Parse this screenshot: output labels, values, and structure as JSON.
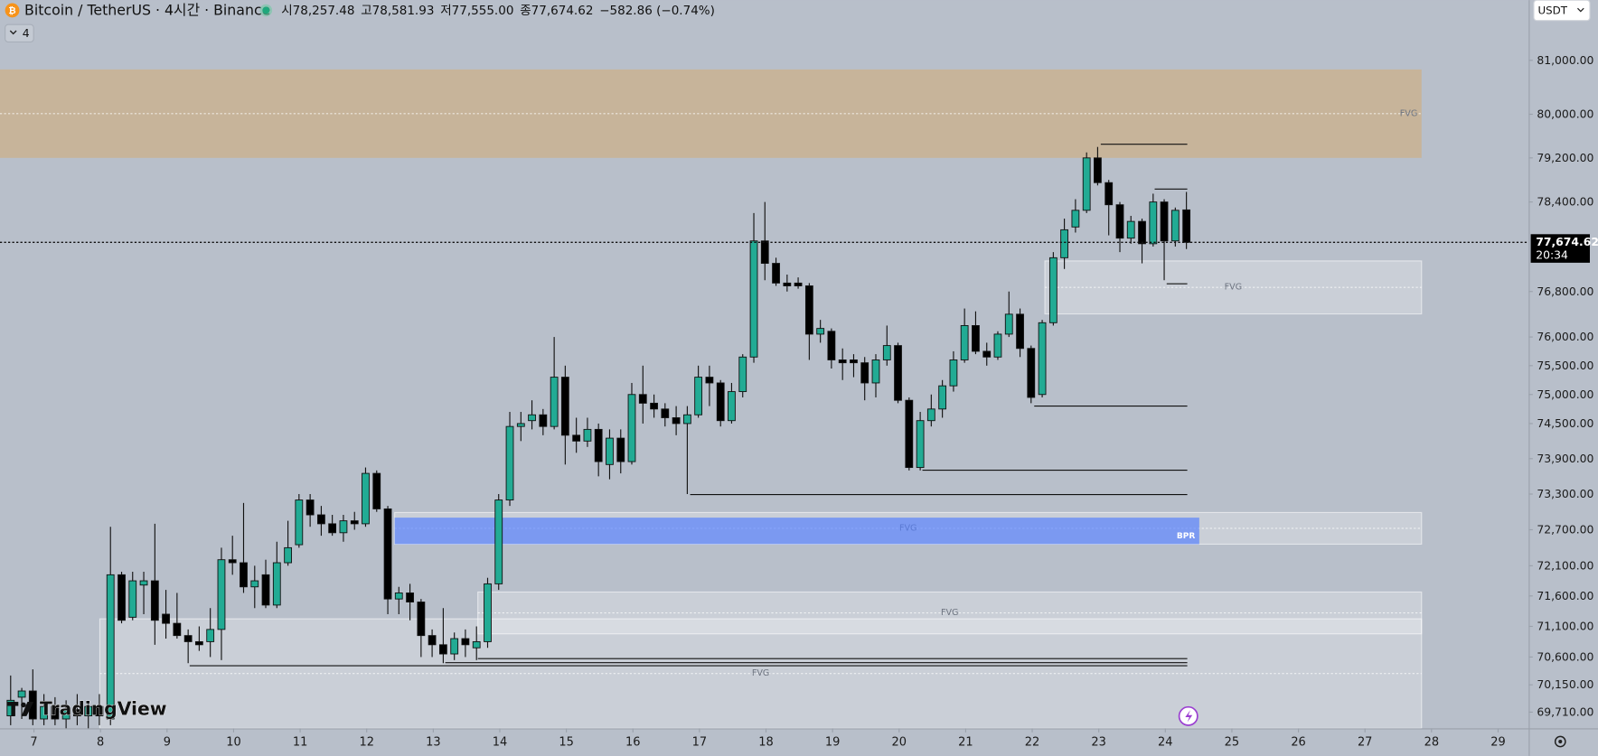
{
  "header": {
    "symbol": "Bitcoin / TetherUS · 4시간 · Binance",
    "ohlc": [
      {
        "key": "시",
        "value": "78,257.48"
      },
      {
        "key": "고",
        "value": "78,581.93"
      },
      {
        "key": "저",
        "value": "77,555.00"
      },
      {
        "key": "종",
        "value": "77,674.62"
      }
    ],
    "change": "−582.86 (−0.74%)"
  },
  "toolbar": {
    "indicators": "4",
    "currency": "USDT"
  },
  "logo": "TradingView",
  "chart_data": {
    "type": "candlestick",
    "log_y": true,
    "grid": false,
    "up_color": "#22ab94",
    "down_color": "#000000",
    "xlim": [
      6.49,
      29.46
    ],
    "xticks": [
      7,
      8,
      9,
      10,
      11,
      12,
      13,
      14,
      15,
      16,
      17,
      18,
      19,
      20,
      21,
      22,
      23,
      24,
      25,
      26,
      27,
      28,
      29
    ],
    "ylim": [
      69450,
      82130
    ],
    "yticks": [
      {
        "value": 81000,
        "label": "81,000.00"
      },
      {
        "value": 80000,
        "label": "80,000.00"
      },
      {
        "value": 79200,
        "label": "79,200.00"
      },
      {
        "value": 78400,
        "label": "78,400.00"
      },
      {
        "value": 76800,
        "label": "76,800.00"
      },
      {
        "value": 76000,
        "label": "76,000.00"
      },
      {
        "value": 75500,
        "label": "75,500.00"
      },
      {
        "value": 75000,
        "label": "75,000.00"
      },
      {
        "value": 74500,
        "label": "74,500.00"
      },
      {
        "value": 73900,
        "label": "73,900.00"
      },
      {
        "value": 73300,
        "label": "73,300.00"
      },
      {
        "value": 72700,
        "label": "72,700.00"
      },
      {
        "value": 72100,
        "label": "72,100.00"
      },
      {
        "value": 71600,
        "label": "71,600.00"
      },
      {
        "value": 71100,
        "label": "71,100.00"
      },
      {
        "value": 70600,
        "label": "70,600.00"
      },
      {
        "value": 70150,
        "label": "70,150.00"
      },
      {
        "value": 69710,
        "label": "69,710.00"
      }
    ],
    "x": [
      6.65,
      6.817,
      6.983,
      7.15,
      7.317,
      7.483,
      7.65,
      7.817,
      7.983,
      8.15,
      8.317,
      8.483,
      8.65,
      8.817,
      8.983,
      9.15,
      9.317,
      9.483,
      9.65,
      9.817,
      9.983,
      10.15,
      10.317,
      10.483,
      10.65,
      10.817,
      10.983,
      11.15,
      11.317,
      11.483,
      11.65,
      11.817,
      11.983,
      12.15,
      12.317,
      12.483,
      12.65,
      12.817,
      12.983,
      13.15,
      13.317,
      13.483,
      13.65,
      13.817,
      13.983,
      14.15,
      14.317,
      14.483,
      14.65,
      14.817,
      14.983,
      15.15,
      15.317,
      15.483,
      15.65,
      15.817,
      15.983,
      16.15,
      16.317,
      16.483,
      16.65,
      16.817,
      16.983,
      17.15,
      17.317,
      17.483,
      17.65,
      17.817,
      17.983,
      18.15,
      18.317,
      18.483,
      18.65,
      18.817,
      18.983,
      19.15,
      19.317,
      19.483,
      19.65,
      19.817,
      19.983,
      20.15,
      20.317,
      20.483,
      20.65,
      20.817,
      20.983,
      21.15,
      21.317,
      21.483,
      21.65,
      21.817,
      21.983,
      22.15,
      22.317,
      22.483,
      22.65,
      22.817,
      22.983,
      23.15,
      23.317,
      23.483,
      23.65,
      23.817,
      23.983,
      24.15,
      24.317
    ],
    "open": [
      69650,
      69950,
      70050,
      69600,
      69800,
      69600,
      69750,
      69650,
      69800,
      69600,
      71950,
      71250,
      71780,
      71850,
      71300,
      71150,
      70950,
      70850,
      70850,
      71050,
      72200,
      72150,
      71750,
      71950,
      71450,
      72150,
      72450,
      73200,
      72950,
      72800,
      72650,
      72850,
      72800,
      73650,
      73050,
      71550,
      71650,
      71500,
      70950,
      70800,
      70650,
      70900,
      70750,
      70850,
      71800,
      73200,
      74450,
      74550,
      74650,
      74450,
      75300,
      74300,
      74200,
      74400,
      73800,
      74250,
      73850,
      75000,
      74850,
      74750,
      74600,
      74500,
      74650,
      75300,
      75200,
      74550,
      75050,
      75650,
      77700,
      77300,
      76950,
      76950,
      76900,
      76050,
      76100,
      75600,
      75600,
      75550,
      75200,
      75600,
      75850,
      74900,
      73750,
      74550,
      74750,
      75150,
      75600,
      76200,
      75750,
      75650,
      76050,
      76400,
      75800,
      75000,
      76250,
      77400,
      77950,
      78250,
      79200,
      78750,
      78350,
      77750,
      78050,
      77650,
      78400,
      77700,
      78257.48
    ],
    "high": [
      70300,
      70100,
      70400,
      70000,
      69950,
      69900,
      70000,
      69850,
      70000,
      72750,
      72000,
      72000,
      72000,
      72800,
      71700,
      71650,
      71050,
      71100,
      71400,
      72400,
      72600,
      73150,
      72100,
      72200,
      72500,
      72850,
      73300,
      73300,
      73100,
      72950,
      72950,
      73000,
      73750,
      73700,
      73100,
      71750,
      71800,
      71550,
      71050,
      71400,
      71000,
      71050,
      71100,
      71900,
      73300,
      74700,
      74700,
      74900,
      74750,
      76000,
      75500,
      74600,
      74600,
      74500,
      74400,
      74400,
      75200,
      75500,
      75000,
      74850,
      74800,
      74800,
      75500,
      75500,
      75250,
      75200,
      75700,
      78200,
      78400,
      77400,
      77100,
      77050,
      76950,
      76300,
      76150,
      75800,
      75700,
      75650,
      75700,
      76200,
      75900,
      74950,
      74700,
      75000,
      75250,
      75750,
      76500,
      76450,
      75900,
      76100,
      76800,
      76500,
      75850,
      76300,
      77500,
      78100,
      78450,
      79300,
      79400,
      78800,
      78400,
      78150,
      78100,
      78550,
      78450,
      78300,
      78581.93
    ],
    "low": [
      69500,
      69600,
      69500,
      69500,
      69500,
      69450,
      69500,
      69450,
      69500,
      69500,
      71150,
      71200,
      71300,
      70800,
      70900,
      70900,
      70500,
      70700,
      70600,
      70550,
      71950,
      71650,
      71400,
      71400,
      71400,
      72100,
      72400,
      72750,
      72600,
      72600,
      72500,
      72700,
      72750,
      73000,
      71300,
      71300,
      71200,
      70600,
      70600,
      70500,
      70550,
      70600,
      70550,
      70750,
      71700,
      73100,
      74200,
      74400,
      74300,
      74400,
      73800,
      74000,
      74100,
      73600,
      73550,
      73650,
      73800,
      74500,
      74600,
      74450,
      74300,
      73300,
      74600,
      74800,
      74450,
      74500,
      74950,
      75550,
      77000,
      76900,
      76800,
      76850,
      75600,
      75900,
      75450,
      75250,
      75300,
      74900,
      74950,
      75500,
      74850,
      73700,
      73700,
      74450,
      74600,
      75050,
      75550,
      75700,
      75500,
      75600,
      76000,
      75650,
      74850,
      74950,
      76200,
      77200,
      77850,
      78200,
      78700,
      77800,
      77500,
      77650,
      77300,
      77600,
      77000,
      77600,
      77555
    ],
    "close": [
      69900,
      70050,
      69600,
      69800,
      69600,
      69750,
      69650,
      69800,
      69650,
      71950,
      71200,
      71850,
      71850,
      71200,
      71150,
      70950,
      70850,
      70800,
      71050,
      72200,
      72150,
      71750,
      71850,
      71450,
      72150,
      72400,
      73200,
      72950,
      72800,
      72650,
      72850,
      72800,
      73650,
      73050,
      71550,
      71650,
      71500,
      70950,
      70800,
      70650,
      70900,
      70800,
      70850,
      71800,
      73200,
      74450,
      74500,
      74650,
      74450,
      75300,
      74300,
      74200,
      74400,
      73850,
      74250,
      73850,
      75000,
      74850,
      74750,
      74600,
      74500,
      74650,
      75300,
      75200,
      74550,
      75050,
      75650,
      77700,
      77300,
      76950,
      76900,
      76900,
      76050,
      76150,
      75600,
      75550,
      75550,
      75200,
      75600,
      75850,
      74900,
      73750,
      74550,
      74750,
      75150,
      75600,
      76200,
      75750,
      75650,
      76050,
      76400,
      75800,
      74950,
      76250,
      77400,
      77900,
      78250,
      79200,
      78750,
      78350,
      77750,
      78050,
      77650,
      78400,
      77700,
      78250,
      77674.62
    ],
    "last_price": 77674.62,
    "last_price_label": "77,674.62",
    "countdown": "20:34",
    "zones": [
      {
        "label": "FVG",
        "top": 80830,
        "bottom": 79200,
        "x": [
          6.49,
          27.85
        ],
        "color": "rgba(214,170,105,0.5)"
      },
      {
        "label": "FVG",
        "top": 77343,
        "bottom": 76405,
        "x": [
          22.19,
          27.85
        ],
        "color": "rgba(255,255,255,0.25)"
      },
      {
        "label": "FVG",
        "top": 72989,
        "bottom": 72459,
        "x": [
          12.42,
          27.85
        ],
        "color": "rgba(255,255,255,0.25)"
      },
      {
        "label": "BPR",
        "top": 72903,
        "bottom": 72459,
        "x": [
          12.42,
          24.51
        ],
        "color": "rgba(80,125,255,0.65)"
      },
      {
        "label": "FVG",
        "top": 71665,
        "bottom": 70978,
        "x": [
          13.67,
          27.85
        ],
        "color": "rgba(255,255,255,0.25)"
      },
      {
        "label": "FVG",
        "top": 71224,
        "bottom": 69450,
        "x": [
          7.99,
          27.85
        ],
        "color": "rgba(255,255,255,0.25)"
      }
    ],
    "levels": [
      {
        "price": 79458,
        "x": [
          23.03,
          24.33
        ]
      },
      {
        "price": 78642,
        "x": [
          23.84,
          24.33
        ]
      },
      {
        "price": 76945,
        "x": [
          24.02,
          24.33
        ]
      },
      {
        "price": 74809,
        "x": [
          22.03,
          24.33
        ]
      },
      {
        "price": 73712,
        "x": [
          20.35,
          24.33
        ]
      },
      {
        "price": 73298,
        "x": [
          16.86,
          24.33
        ]
      },
      {
        "price": 70580,
        "x": [
          13.67,
          24.33
        ]
      },
      {
        "price": 70514,
        "x": [
          13.18,
          24.33
        ]
      },
      {
        "price": 70465,
        "x": [
          9.34,
          24.33
        ]
      }
    ]
  }
}
